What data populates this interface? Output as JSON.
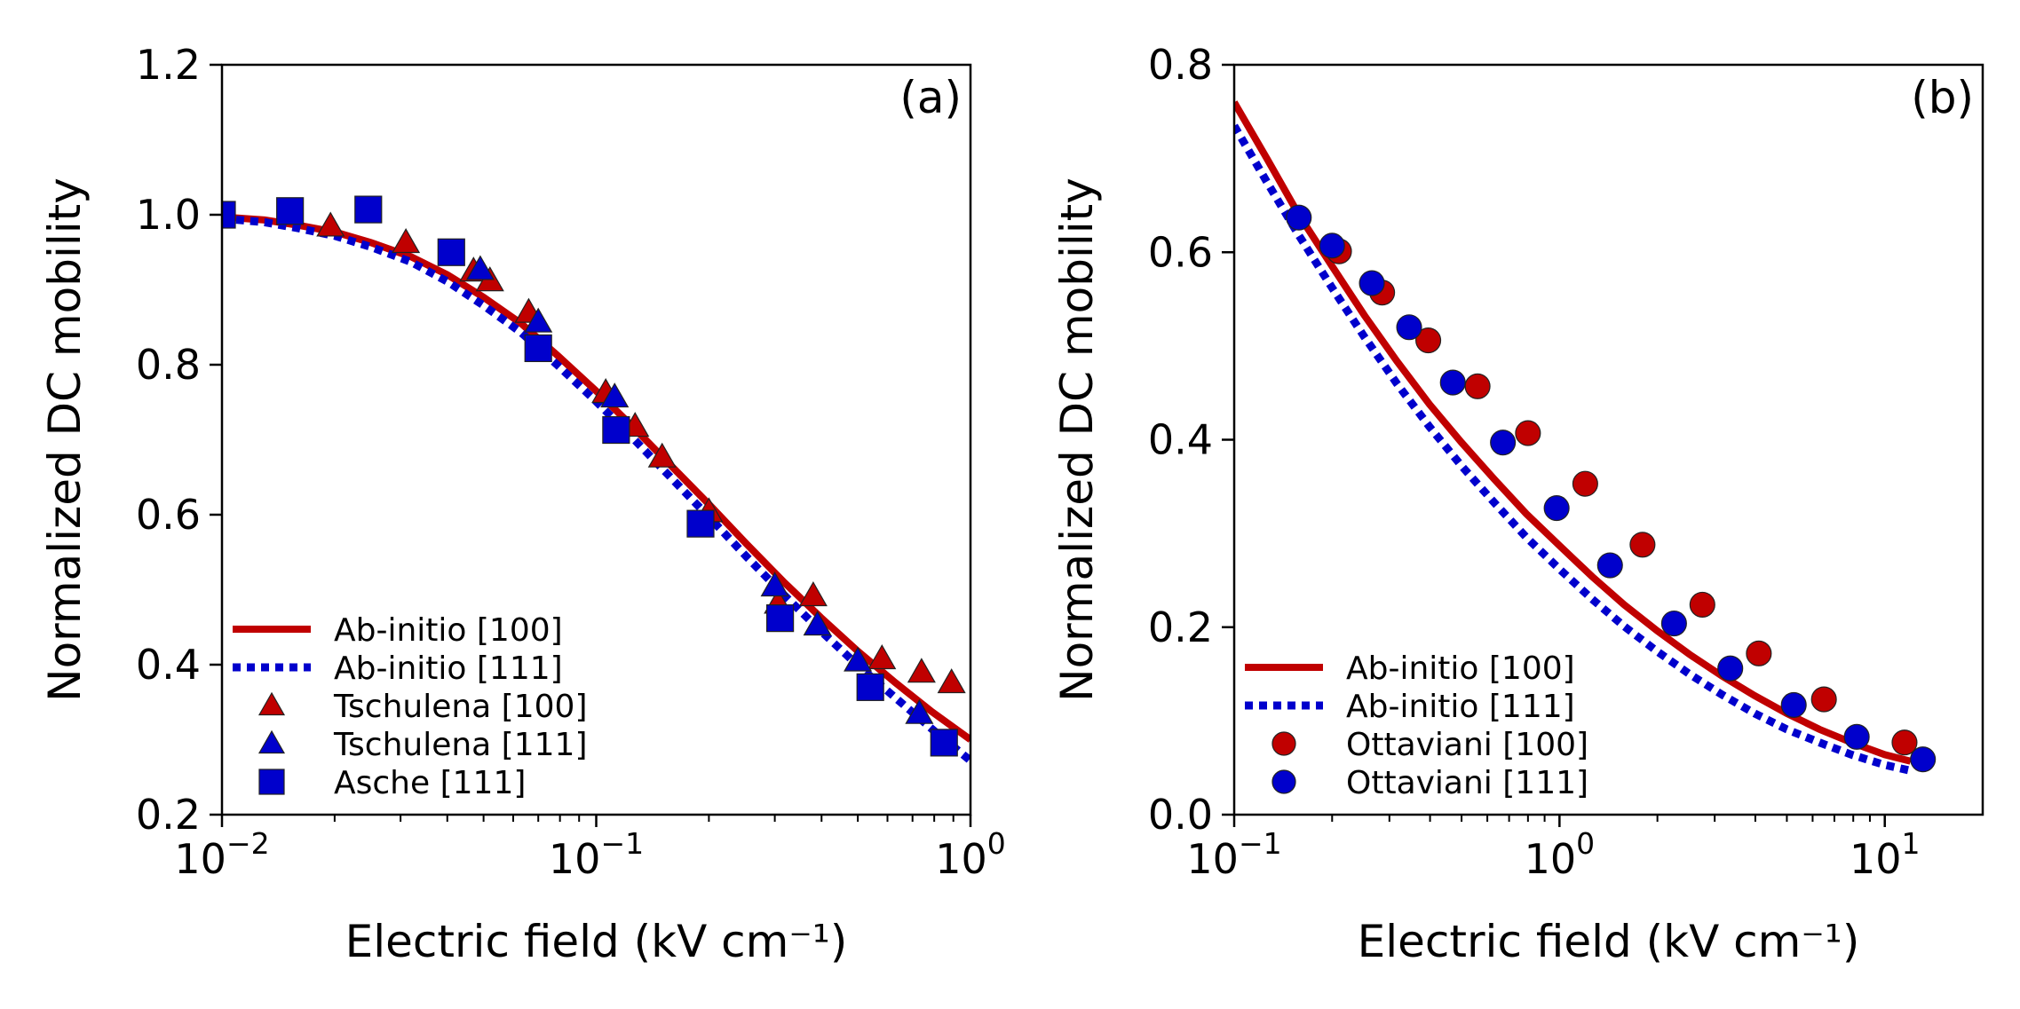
{
  "chart_data": [
    {
      "type": "line",
      "panel_label": "(a)",
      "xscale": "log",
      "xlabel": "Electric field (kV cm⁻¹)",
      "ylabel": "Normalized DC mobility",
      "xlim": [
        0.01,
        1
      ],
      "ylim": [
        0.2,
        1.2
      ],
      "xticks": [
        {
          "value": 0.01,
          "base": "10",
          "exp": "−2"
        },
        {
          "value": 0.1,
          "base": "10",
          "exp": "−1"
        },
        {
          "value": 1,
          "base": "10",
          "exp": "0"
        }
      ],
      "yticks": [
        {
          "value": 0.2,
          "label": "0.2"
        },
        {
          "value": 0.4,
          "label": "0.4"
        },
        {
          "value": 0.6,
          "label": "0.6"
        },
        {
          "value": 0.8,
          "label": "0.8"
        },
        {
          "value": 1.0,
          "label": "1.0"
        },
        {
          "value": 1.2,
          "label": "1.2"
        }
      ],
      "legend_position": "lower-left",
      "series": [
        {
          "name": "Ab-initio [100]",
          "kind": "line",
          "style": "solid",
          "color": "#c00000",
          "x": [
            0.01,
            0.013,
            0.016,
            0.02,
            0.025,
            0.032,
            0.04,
            0.05,
            0.063,
            0.079,
            0.1,
            0.126,
            0.158,
            0.2,
            0.251,
            0.316,
            0.398,
            0.5,
            0.63,
            0.79,
            1.0
          ],
          "y": [
            0.997,
            0.993,
            0.986,
            0.977,
            0.963,
            0.944,
            0.92,
            0.89,
            0.855,
            0.812,
            0.765,
            0.716,
            0.666,
            0.614,
            0.562,
            0.511,
            0.463,
            0.418,
            0.376,
            0.337,
            0.3
          ]
        },
        {
          "name": "Ab-initio [111]",
          "kind": "line",
          "style": "dotted",
          "color": "#0000cc",
          "x": [
            0.01,
            0.013,
            0.016,
            0.02,
            0.025,
            0.032,
            0.04,
            0.05,
            0.063,
            0.079,
            0.1,
            0.126,
            0.158,
            0.2,
            0.251,
            0.316,
            0.398,
            0.5,
            0.63,
            0.79,
            1.0
          ],
          "y": [
            0.995,
            0.99,
            0.982,
            0.972,
            0.957,
            0.937,
            0.911,
            0.879,
            0.843,
            0.799,
            0.751,
            0.701,
            0.65,
            0.597,
            0.545,
            0.494,
            0.445,
            0.399,
            0.356,
            0.314,
            0.272
          ]
        },
        {
          "name": "Tschulena [100]",
          "kind": "marker",
          "marker": "triangle",
          "color": "#c00000",
          "x": [
            0.0195,
            0.031,
            0.047,
            0.052,
            0.066,
            0.106,
            0.127,
            0.15,
            0.2,
            0.306,
            0.38,
            0.58,
            0.74,
            0.89
          ],
          "y": [
            0.985,
            0.963,
            0.925,
            0.912,
            0.87,
            0.763,
            0.718,
            0.677,
            0.604,
            0.482,
            0.492,
            0.408,
            0.39,
            0.376
          ]
        },
        {
          "name": "Tschulena [111]",
          "kind": "marker",
          "marker": "triangle",
          "color": "#0000cc",
          "x": [
            0.049,
            0.07,
            0.112,
            0.3,
            0.39,
            0.5,
            0.73
          ],
          "y": [
            0.927,
            0.857,
            0.757,
            0.505,
            0.453,
            0.405,
            0.335
          ]
        },
        {
          "name": "Asche [111]",
          "kind": "marker",
          "marker": "square",
          "color": "#0000cc",
          "x": [
            0.01,
            0.0152,
            0.0246,
            0.041,
            0.07,
            0.113,
            0.19,
            0.31,
            0.54,
            0.85
          ],
          "y": [
            1.0,
            1.005,
            1.007,
            0.95,
            0.822,
            0.713,
            0.588,
            0.462,
            0.37,
            0.296
          ]
        }
      ]
    },
    {
      "type": "line",
      "panel_label": "(b)",
      "xscale": "log",
      "xlabel": "Electric field (kV cm⁻¹)",
      "ylabel": "Normalized DC mobility",
      "xlim": [
        0.1,
        20
      ],
      "ylim": [
        0.0,
        0.8
      ],
      "xticks": [
        {
          "value": 0.1,
          "base": "10",
          "exp": "−1"
        },
        {
          "value": 1,
          "base": "10",
          "exp": "0"
        },
        {
          "value": 10,
          "base": "10",
          "exp": "1"
        }
      ],
      "yticks": [
        {
          "value": 0.0,
          "label": "0.0"
        },
        {
          "value": 0.2,
          "label": "0.2"
        },
        {
          "value": 0.4,
          "label": "0.4"
        },
        {
          "value": 0.6,
          "label": "0.6"
        },
        {
          "value": 0.8,
          "label": "0.8"
        }
      ],
      "legend_position": "lower-left",
      "series": [
        {
          "name": "Ab-initio [100]",
          "kind": "line",
          "style": "solid",
          "color": "#c00000",
          "x": [
            0.1,
            0.126,
            0.158,
            0.2,
            0.251,
            0.316,
            0.398,
            0.5,
            0.63,
            0.79,
            1.0,
            1.26,
            1.58,
            2.0,
            2.51,
            3.16,
            3.98,
            5.0,
            6.3,
            7.9,
            10.0,
            12.0
          ],
          "y": [
            0.76,
            0.7,
            0.64,
            0.585,
            0.533,
            0.484,
            0.438,
            0.397,
            0.358,
            0.321,
            0.287,
            0.254,
            0.224,
            0.196,
            0.171,
            0.148,
            0.127,
            0.108,
            0.091,
            0.077,
            0.064,
            0.057
          ]
        },
        {
          "name": "Ab-initio [111]",
          "kind": "line",
          "style": "dotted",
          "color": "#0000cc",
          "x": [
            0.1,
            0.126,
            0.158,
            0.2,
            0.251,
            0.316,
            0.398,
            0.5,
            0.63,
            0.79,
            1.0,
            1.26,
            1.58,
            2.0,
            2.51,
            3.16,
            3.98,
            5.0,
            6.3,
            7.9,
            10.0,
            12.0
          ],
          "y": [
            0.735,
            0.675,
            0.618,
            0.562,
            0.51,
            0.46,
            0.414,
            0.372,
            0.333,
            0.296,
            0.262,
            0.23,
            0.201,
            0.174,
            0.15,
            0.128,
            0.108,
            0.091,
            0.077,
            0.064,
            0.053,
            0.047
          ]
        },
        {
          "name": "Ottaviani [100]",
          "kind": "marker",
          "marker": "circle",
          "color": "#c00000",
          "x": [
            0.21,
            0.285,
            0.395,
            0.56,
            0.8,
            1.2,
            1.8,
            2.75,
            4.1,
            6.5,
            11.5
          ],
          "y": [
            0.601,
            0.557,
            0.506,
            0.457,
            0.407,
            0.353,
            0.288,
            0.224,
            0.172,
            0.123,
            0.077
          ]
        },
        {
          "name": "Ottaviani [111]",
          "kind": "marker",
          "marker": "circle",
          "color": "#0000cc",
          "x": [
            0.158,
            0.2,
            0.265,
            0.345,
            0.47,
            0.67,
            0.98,
            1.43,
            2.25,
            3.35,
            5.25,
            8.2,
            13.1
          ],
          "y": [
            0.637,
            0.607,
            0.567,
            0.52,
            0.461,
            0.397,
            0.327,
            0.266,
            0.204,
            0.156,
            0.117,
            0.083,
            0.059
          ]
        }
      ]
    }
  ]
}
